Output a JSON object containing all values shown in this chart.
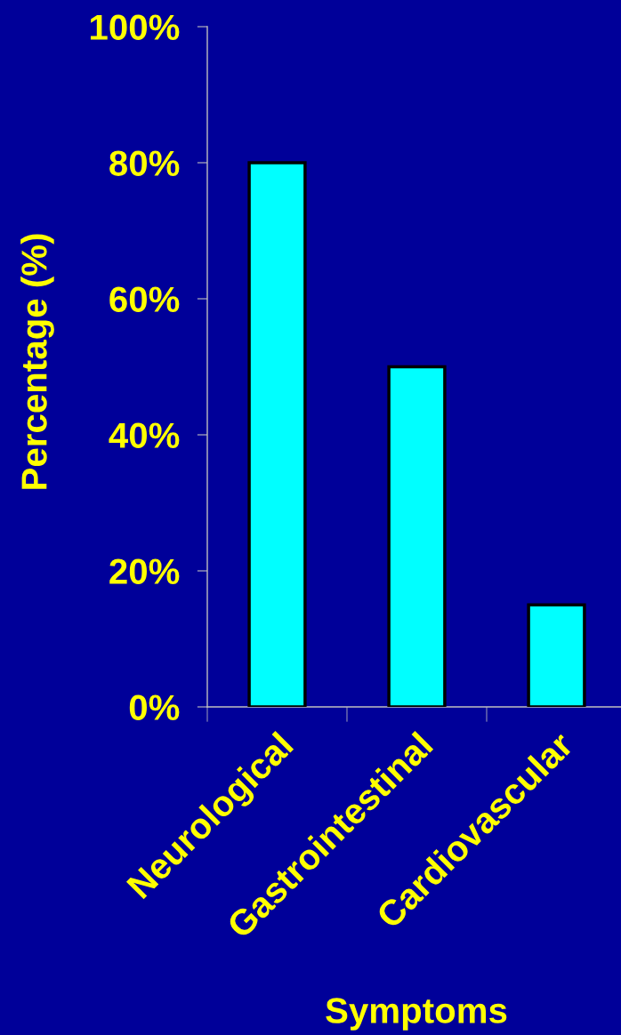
{
  "chart_data": {
    "type": "bar",
    "categories": [
      "Neurological",
      "Gastrointestinal",
      "Cardiovascular"
    ],
    "values": [
      80,
      50,
      15
    ],
    "color": "#00ffff",
    "xlabel": "Symptoms",
    "ylabel": "Percentage (%)",
    "ylim": [
      0,
      100
    ],
    "yticks": [
      {
        "value": 0,
        "label": "0%"
      },
      {
        "value": 20,
        "label": "20%"
      },
      {
        "value": 40,
        "label": "40%"
      },
      {
        "value": 60,
        "label": "60%"
      },
      {
        "value": 80,
        "label": "80%"
      },
      {
        "value": 100,
        "label": "100%"
      }
    ],
    "grid": false,
    "legend": false
  }
}
